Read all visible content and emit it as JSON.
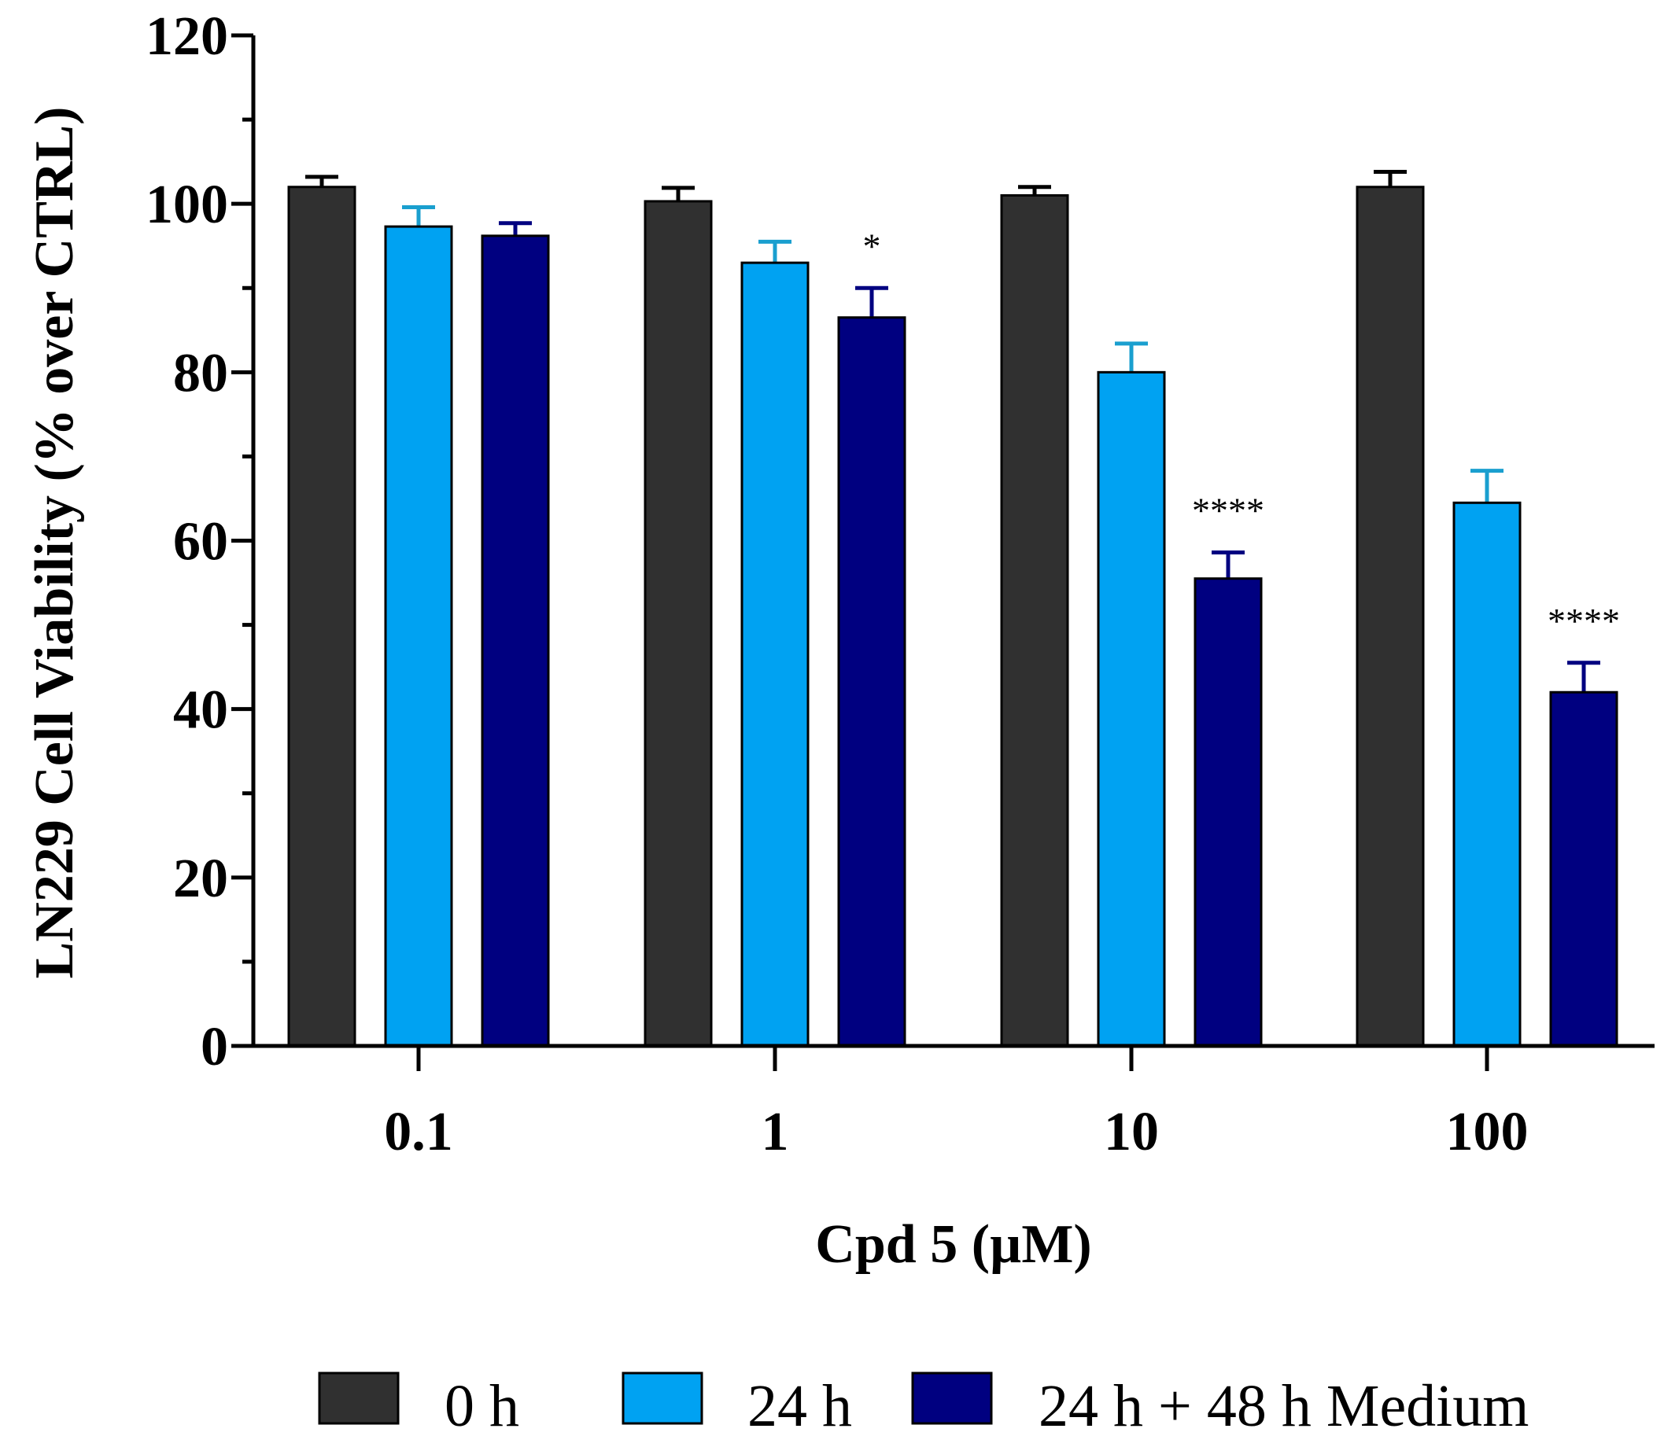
{
  "chart_data": {
    "type": "bar",
    "title": "",
    "xlabel": "Cpd 5 (µM)",
    "ylabel": "LN229 Cell Viability (% over CTRL)",
    "ylim": [
      0,
      120
    ],
    "yticks": [
      0,
      20,
      40,
      60,
      80,
      100,
      120
    ],
    "categories": [
      "0.1",
      "1",
      "10",
      "100"
    ],
    "series": [
      {
        "name": "0 h",
        "color": "#303030",
        "error_color": "#000000",
        "values": [
          102,
          100.3,
          101,
          102
        ],
        "errors": [
          1.2,
          1.6,
          1.0,
          1.8
        ]
      },
      {
        "name": "24 h",
        "color": "#00a2f2",
        "error_color": "#1a9fcf",
        "values": [
          97.3,
          93,
          80,
          64.5
        ],
        "errors": [
          2.3,
          2.5,
          3.4,
          3.8
        ]
      },
      {
        "name": "24 h + 48 h Medium",
        "color": "#000080",
        "error_color": "#000080",
        "values": [
          96.2,
          86.5,
          55.5,
          42
        ],
        "errors": [
          1.5,
          3.5,
          3.1,
          3.5
        ]
      }
    ],
    "annotations": [
      {
        "category": "1",
        "series": "24 h + 48 h Medium",
        "text": "*"
      },
      {
        "category": "10",
        "series": "24 h + 48 h Medium",
        "text": "****"
      },
      {
        "category": "100",
        "series": "24 h + 48 h Medium",
        "text": "****"
      }
    ],
    "legend_position": "bottom",
    "grid": false
  }
}
